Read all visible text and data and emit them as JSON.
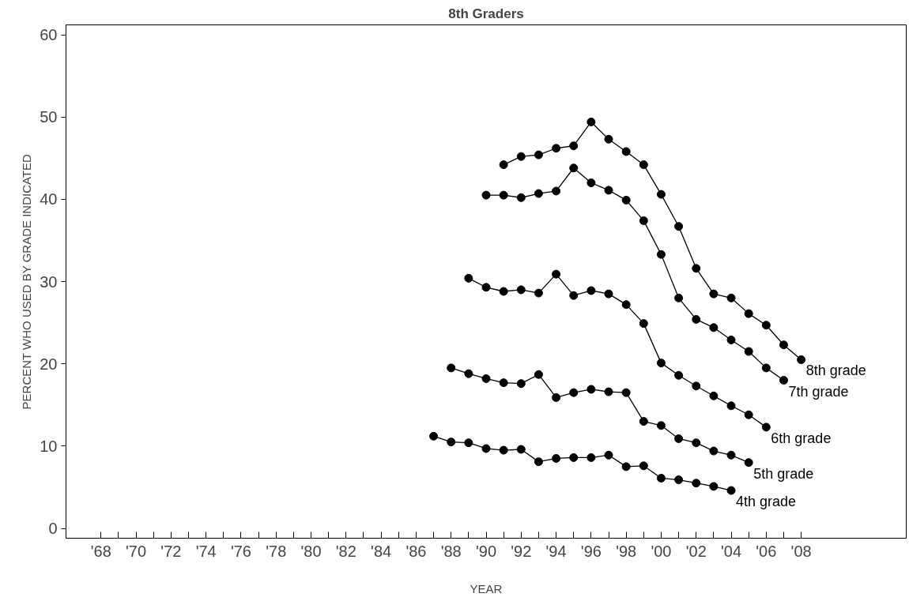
{
  "chart_data": {
    "type": "line",
    "title": "8th Graders",
    "xlabel": "YEAR",
    "ylabel": "PERCENT WHO USED BY GRADE INDICATED",
    "xlim": [
      1966,
      2014
    ],
    "ylim": [
      -1.2,
      61.2
    ],
    "xticks": [
      {
        "value": 1968,
        "label": "'68"
      },
      {
        "value": 1969,
        "label": null
      },
      {
        "value": 1970,
        "label": "'70"
      },
      {
        "value": 1971,
        "label": null
      },
      {
        "value": 1972,
        "label": "'72"
      },
      {
        "value": 1973,
        "label": null
      },
      {
        "value": 1974,
        "label": "'74"
      },
      {
        "value": 1975,
        "label": null
      },
      {
        "value": 1976,
        "label": "'76"
      },
      {
        "value": 1977,
        "label": null
      },
      {
        "value": 1978,
        "label": "'78"
      },
      {
        "value": 1979,
        "label": null
      },
      {
        "value": 1980,
        "label": "'80"
      },
      {
        "value": 1981,
        "label": null
      },
      {
        "value": 1982,
        "label": "'82"
      },
      {
        "value": 1983,
        "label": null
      },
      {
        "value": 1984,
        "label": "'84"
      },
      {
        "value": 1985,
        "label": null
      },
      {
        "value": 1986,
        "label": "'86"
      },
      {
        "value": 1987,
        "label": null
      },
      {
        "value": 1988,
        "label": "'88"
      },
      {
        "value": 1989,
        "label": null
      },
      {
        "value": 1990,
        "label": "'90"
      },
      {
        "value": 1991,
        "label": null
      },
      {
        "value": 1992,
        "label": "'92"
      },
      {
        "value": 1993,
        "label": null
      },
      {
        "value": 1994,
        "label": "'94"
      },
      {
        "value": 1995,
        "label": null
      },
      {
        "value": 1996,
        "label": "'96"
      },
      {
        "value": 1997,
        "label": null
      },
      {
        "value": 1998,
        "label": "'98"
      },
      {
        "value": 1999,
        "label": null
      },
      {
        "value": 2000,
        "label": "'00"
      },
      {
        "value": 2001,
        "label": null
      },
      {
        "value": 2002,
        "label": "'02"
      },
      {
        "value": 2003,
        "label": null
      },
      {
        "value": 2004,
        "label": "'04"
      },
      {
        "value": 2005,
        "label": null
      },
      {
        "value": 2006,
        "label": "'06"
      },
      {
        "value": 2007,
        "label": null
      },
      {
        "value": 2008,
        "label": "'08"
      }
    ],
    "yticks": [
      0,
      10,
      20,
      30,
      40,
      50,
      60
    ],
    "grid": false,
    "legend": false,
    "marker": "circle",
    "line_style": "solid",
    "series": [
      {
        "name": "8th grade",
        "color": "#000000",
        "x": [
          1991,
          1992,
          1993,
          1994,
          1995,
          1996,
          1997,
          1998,
          1999,
          2000,
          2001,
          2002,
          2003,
          2004,
          2005,
          2006,
          2007,
          2008
        ],
        "values": [
          44.2,
          45.2,
          45.4,
          46.2,
          46.5,
          49.4,
          47.3,
          45.8,
          44.2,
          40.6,
          36.7,
          31.6,
          28.5,
          28.0,
          26.1,
          24.7,
          22.3,
          20.5
        ]
      },
      {
        "name": "7th grade",
        "color": "#000000",
        "x": [
          1990,
          1991,
          1992,
          1993,
          1994,
          1995,
          1996,
          1997,
          1998,
          1999,
          2000,
          2001,
          2002,
          2003,
          2004,
          2005,
          2006,
          2007
        ],
        "values": [
          40.5,
          40.5,
          40.2,
          40.7,
          41.0,
          43.8,
          42.0,
          41.1,
          39.9,
          37.4,
          33.3,
          28.0,
          25.4,
          24.4,
          22.9,
          21.5,
          19.5,
          18.0
        ]
      },
      {
        "name": "6th grade",
        "color": "#000000",
        "x": [
          1989,
          1990,
          1991,
          1992,
          1993,
          1994,
          1995,
          1996,
          1997,
          1998,
          1999,
          2000,
          2001,
          2002,
          2003,
          2004,
          2005,
          2006
        ],
        "values": [
          30.4,
          29.3,
          28.8,
          29.0,
          28.6,
          30.9,
          28.3,
          28.9,
          28.5,
          27.2,
          24.9,
          20.1,
          18.6,
          17.3,
          16.1,
          14.9,
          13.8,
          12.3
        ]
      },
      {
        "name": "5th grade",
        "color": "#000000",
        "x": [
          1988,
          1989,
          1990,
          1991,
          1992,
          1993,
          1994,
          1995,
          1996,
          1997,
          1998,
          1999,
          2000,
          2001,
          2002,
          2003,
          2004,
          2005
        ],
        "values": [
          19.5,
          18.8,
          18.2,
          17.7,
          17.6,
          18.7,
          15.9,
          16.5,
          16.9,
          16.6,
          16.5,
          13.0,
          12.5,
          10.9,
          10.4,
          9.4,
          8.9,
          8.0
        ]
      },
      {
        "name": "4th grade",
        "color": "#000000",
        "x": [
          1987,
          1988,
          1989,
          1990,
          1991,
          1992,
          1993,
          1994,
          1995,
          1996,
          1997,
          1998,
          1999,
          2000,
          2001,
          2002,
          2003,
          2004
        ],
        "values": [
          11.2,
          10.5,
          10.4,
          9.7,
          9.5,
          9.6,
          8.1,
          8.5,
          8.6,
          8.6,
          8.9,
          7.5,
          7.6,
          6.1,
          5.9,
          5.5,
          5.1,
          4.6
        ]
      }
    ]
  }
}
